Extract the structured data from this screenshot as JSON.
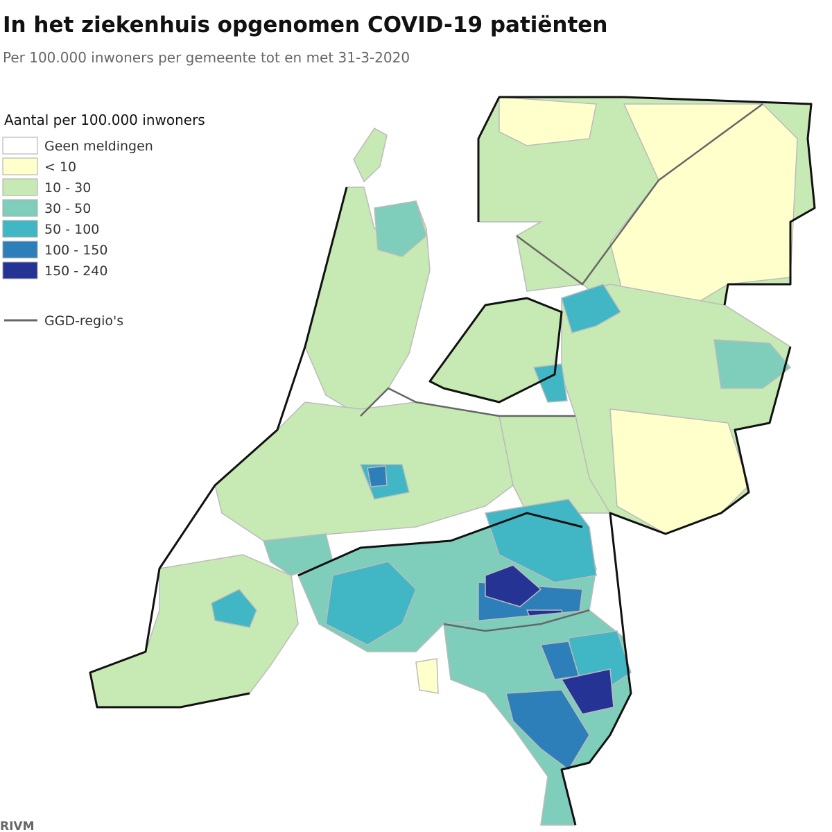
{
  "header": {
    "title": "In het ziekenhuis opgenomen COVID-19 patiënten",
    "subtitle": "Per 100.000 inwoners per gemeente tot en met 31-3-2020"
  },
  "legend": {
    "title": "Aantal per 100.000 inwoners",
    "items": [
      {
        "label": "Geen meldingen",
        "color": "#ffffff"
      },
      {
        "label": "< 10",
        "color": "#ffffcc"
      },
      {
        "label": "10 - 30",
        "color": "#c7e9b4"
      },
      {
        "label": "30 - 50",
        "color": "#7fcdbb"
      },
      {
        "label": "50 - 100",
        "color": "#41b6c4"
      },
      {
        "label": "100 - 150",
        "color": "#2c7fb8"
      },
      {
        "label": "150 - 240",
        "color": "#253494"
      }
    ],
    "line_label": "GGD-regio's"
  },
  "source": "RIVM"
}
